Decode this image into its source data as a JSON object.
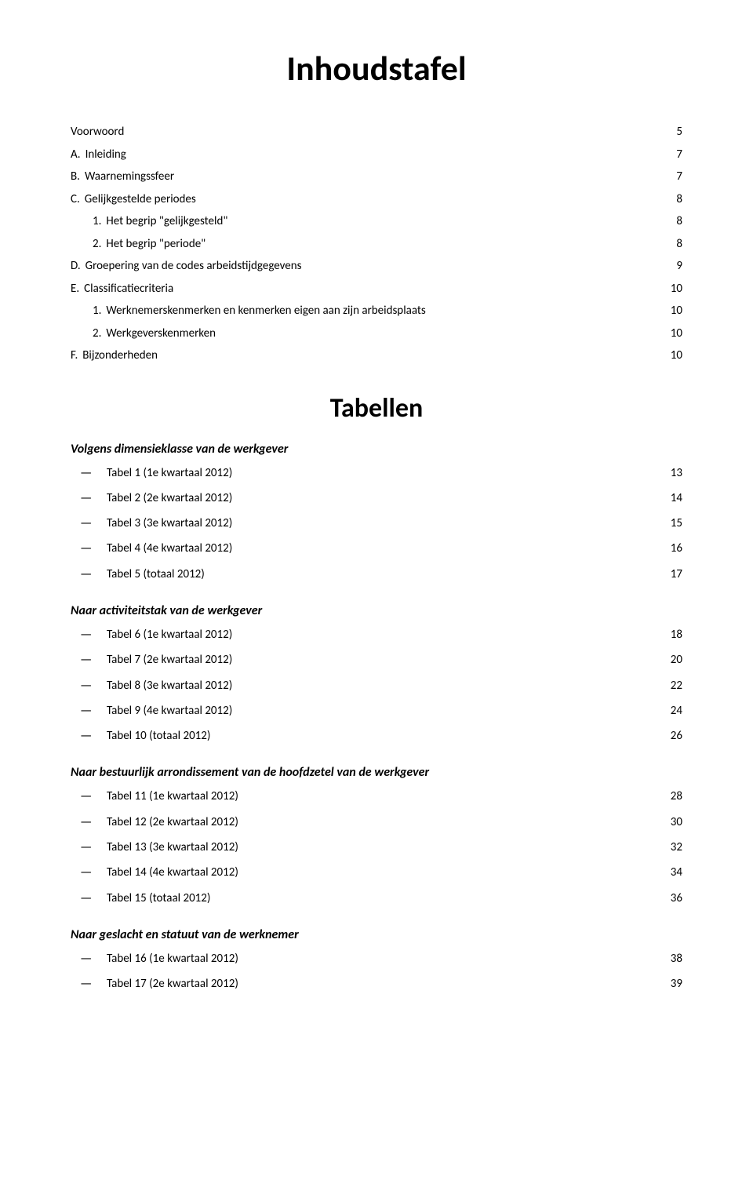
{
  "title": "Inhoudstafel",
  "section2_title": "Tabellen",
  "sections": [
    {
      "prefix": "",
      "label": "Voorwoord",
      "page": "5",
      "indent": 0
    },
    {
      "prefix": "A.",
      "label": "Inleiding",
      "page": "7",
      "indent": 0
    },
    {
      "prefix": "B.",
      "label": "Waarnemingssfeer",
      "page": "7",
      "indent": 0
    },
    {
      "prefix": "C.",
      "label": "Gelijkgestelde periodes",
      "page": "8",
      "indent": 0
    },
    {
      "prefix": "1.",
      "label": "Het begrip \"gelijkgesteld\"",
      "page": "8",
      "indent": 1
    },
    {
      "prefix": "2.",
      "label": "Het begrip \"periode\"",
      "page": "8",
      "indent": 1
    },
    {
      "prefix": "D.",
      "label": "Groepering van de codes arbeidstijdgegevens",
      "page": "9",
      "indent": 0
    },
    {
      "prefix": "E.",
      "label": "Classificatiecriteria",
      "page": "10",
      "indent": 0
    },
    {
      "prefix": "1.",
      "label": "Werknemerskenmerken en kenmerken eigen aan zijn arbeidsplaats",
      "page": "10",
      "indent": 1
    },
    {
      "prefix": "2.",
      "label": "Werkgeverskenmerken",
      "page": "10",
      "indent": 1
    },
    {
      "prefix": "F.",
      "label": "Bijzonderheden",
      "page": "10",
      "indent": 0
    }
  ],
  "groups": [
    {
      "heading": "Volgens dimensieklasse van de werkgever",
      "items": [
        {
          "label": "Tabel 1 (1e kwartaal 2012)",
          "page": "13"
        },
        {
          "label": "Tabel 2 (2e kwartaal 2012)",
          "page": "14"
        },
        {
          "label": "Tabel 3 (3e kwartaal 2012)",
          "page": "15"
        },
        {
          "label": "Tabel 4 (4e kwartaal 2012)",
          "page": "16"
        },
        {
          "label": "Tabel 5 (totaal 2012)",
          "page": "17"
        }
      ]
    },
    {
      "heading": "Naar activiteitstak van de werkgever",
      "items": [
        {
          "label": "Tabel 6 (1e kwartaal 2012)",
          "page": "18"
        },
        {
          "label": "Tabel 7 (2e kwartaal 2012)",
          "page": "20"
        },
        {
          "label": "Tabel 8 (3e kwartaal 2012)",
          "page": "22"
        },
        {
          "label": "Tabel 9 (4e kwartaal 2012)",
          "page": "24"
        },
        {
          "label": "Tabel 10 (totaal 2012)",
          "page": "26"
        }
      ]
    },
    {
      "heading": "Naar bestuurlijk arrondissement van de hoofdzetel van de werkgever",
      "items": [
        {
          "label": "Tabel 11 (1e kwartaal 2012)",
          "page": "28"
        },
        {
          "label": "Tabel 12 (2e kwartaal 2012)",
          "page": "30"
        },
        {
          "label": "Tabel 13 (3e kwartaal 2012)",
          "page": "32"
        },
        {
          "label": "Tabel 14 (4e kwartaal 2012)",
          "page": "34"
        },
        {
          "label": "Tabel 15 (totaal 2012)",
          "page": "36"
        }
      ]
    },
    {
      "heading": "Naar geslacht en statuut van de werknemer",
      "items": [
        {
          "label": "Tabel 16 (1e kwartaal 2012)",
          "page": "38"
        },
        {
          "label": "Tabel 17 (2e kwartaal 2012)",
          "page": "39"
        }
      ]
    }
  ]
}
